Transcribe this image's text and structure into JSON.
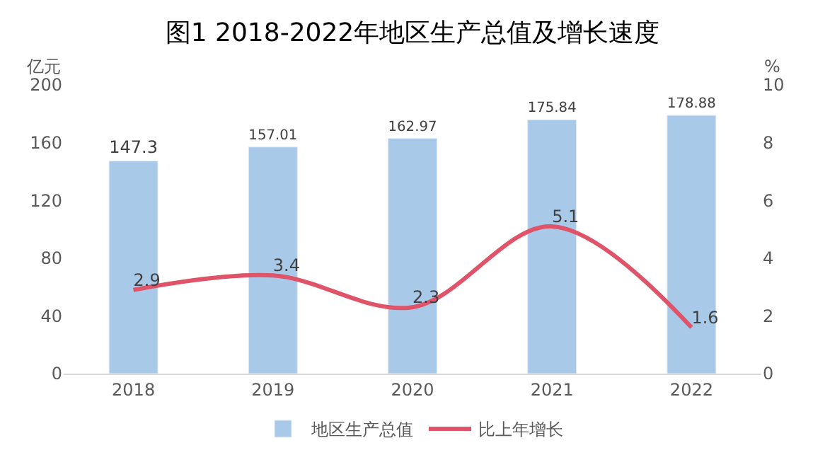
{
  "chart_data": {
    "type": "bar",
    "title": "图1 2018-2022年地区生产总值及增长速度",
    "ylabel": "亿元",
    "y2label": "%",
    "categories": [
      "2018",
      "2019",
      "2020",
      "2021",
      "2022"
    ],
    "series": [
      {
        "name": "地区生产总值",
        "color": "#a9c9e9",
        "values": [
          147.3,
          157.01,
          162.97,
          175.84,
          178.88
        ]
      },
      {
        "name": "比上年增长",
        "type": "line",
        "axis": "y2",
        "color": "#e05469",
        "values": [
          2.9,
          3.4,
          2.3,
          5.1,
          1.6
        ]
      }
    ],
    "ylim": [
      0,
      200
    ],
    "yticks": [
      0,
      40,
      80,
      120,
      160,
      200
    ],
    "y2lim": [
      0,
      10
    ],
    "y2ticks": [
      0,
      2,
      4,
      6,
      8,
      10
    ],
    "data_labels": true,
    "legend": "bottom",
    "grid": false,
    "marker": "none",
    "line_style": "solid"
  }
}
